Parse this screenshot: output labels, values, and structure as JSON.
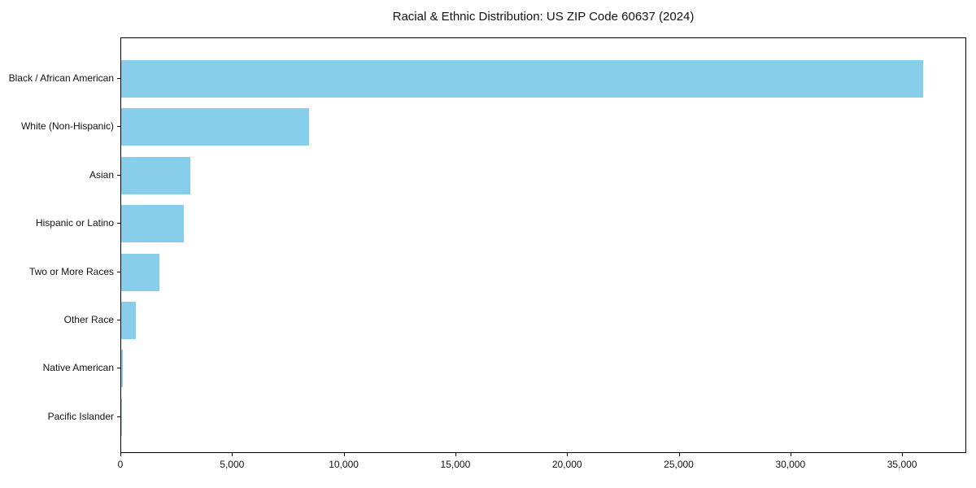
{
  "chart_data": {
    "type": "bar",
    "orientation": "horizontal",
    "title": "Racial & Ethnic Distribution: US ZIP Code 60637 (2024)",
    "categories": [
      "Black / African American",
      "White (Non-Hispanic)",
      "Asian",
      "Hispanic or Latino",
      "Two or More Races",
      "Other Race",
      "Native American",
      "Pacific Islander"
    ],
    "values": [
      35900,
      8400,
      3100,
      2800,
      1700,
      650,
      70,
      20
    ],
    "xlabel": "",
    "ylabel": "",
    "xlim": [
      0,
      37800
    ],
    "x_tick_values": [
      0,
      5000,
      10000,
      15000,
      20000,
      25000,
      30000,
      35000
    ],
    "x_tick_labels": [
      "0",
      "5,000",
      "10,000",
      "15,000",
      "20,000",
      "25,000",
      "30,000",
      "35,000"
    ],
    "bar_color": "#87CEEB",
    "axis_color": "#000000",
    "text_color": "#111111",
    "background_color": "#ffffff",
    "grid": false,
    "legend_position": "none"
  }
}
